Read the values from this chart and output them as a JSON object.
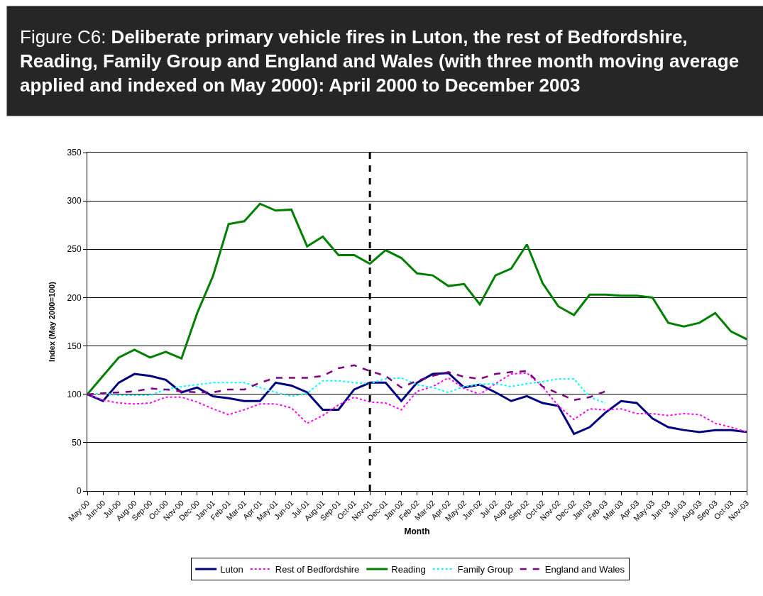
{
  "chart_data": {
    "type": "line",
    "title": "Figure C6: Deliberate primary vehicle fires in Luton, the rest of Bedfordshire, Reading, Family Group and England and Wales (with three month moving average applied and indexed on May 2000): April 2000 to December 2003",
    "xlabel": "Month",
    "ylabel": "Index (May 2000=100)",
    "categories": [
      "May-00",
      "Jun-00",
      "Jul-00",
      "Aug-00",
      "Sep-00",
      "Oct-00",
      "Nov-00",
      "Dec-00",
      "Jan-01",
      "Feb-01",
      "Mar-01",
      "Apr-01",
      "May-01",
      "Jun-01",
      "Jul-01",
      "Aug-01",
      "Sep-01",
      "Oct-01",
      "Nov-01",
      "Dec-01",
      "Jan-02",
      "Feb-02",
      "Mar-02",
      "Apr-02",
      "May-02",
      "Jun-02",
      "Jul-02",
      "Aug-02",
      "Sep-02",
      "Oct-02",
      "Nov-02",
      "Dec-02",
      "Jan-03",
      "Feb-03",
      "Mar-03",
      "Apr-03",
      "May-03",
      "Jun-03",
      "Jul-03",
      "Aug-03",
      "Sep-03",
      "Oct-03",
      "Nov-03"
    ],
    "series": [
      {
        "name": "Luton",
        "color": "#000080",
        "line_style": "solid",
        "values": [
          100,
          93,
          112,
          121,
          119,
          115,
          102,
          107,
          98,
          96,
          93,
          93,
          112,
          109,
          102,
          84,
          84,
          105,
          112,
          112,
          93,
          112,
          121,
          122,
          107,
          110,
          102,
          93,
          98,
          91,
          88,
          59,
          66,
          81,
          93,
          91,
          75,
          66,
          63,
          61,
          63,
          63,
          61
        ]
      },
      {
        "name": "Rest of Bedfordshire",
        "color": "#ff00ff",
        "line_style": "dotted",
        "values": [
          100,
          94,
          91,
          90,
          91,
          97,
          97,
          92,
          85,
          79,
          84,
          90,
          90,
          86,
          70,
          78,
          89,
          97,
          92,
          91,
          84,
          103,
          108,
          117,
          106,
          100,
          111,
          121,
          122,
          108,
          88,
          74,
          85,
          84,
          85,
          80,
          80,
          78,
          80,
          79,
          70,
          66,
          61
        ]
      },
      {
        "name": "Reading",
        "color": "#008000",
        "line_style": "solid",
        "values": [
          100,
          119,
          138,
          146,
          138,
          144,
          137,
          184,
          222,
          276,
          279,
          297,
          290,
          291,
          253,
          263,
          244,
          244,
          235,
          249,
          241,
          225,
          223,
          212,
          214,
          193,
          223,
          230,
          255,
          215,
          191,
          182,
          203,
          203,
          202,
          202,
          200,
          174,
          170,
          174,
          184,
          165,
          157
        ]
      },
      {
        "name": "Family Group",
        "color": "#00ffff",
        "line_style": "dotted",
        "values": [
          100,
          101,
          99,
          99,
          99,
          105,
          108,
          110,
          112,
          112,
          112,
          107,
          102,
          98,
          101,
          114,
          114,
          112,
          111,
          116,
          117,
          110,
          107,
          102,
          108,
          110,
          111,
          108,
          111,
          113,
          116,
          116,
          97,
          91,
          null,
          null,
          null,
          null,
          null,
          null,
          null,
          null,
          null
        ]
      },
      {
        "name": "England and Wales",
        "color": "#800080",
        "line_style": "dashed",
        "values": [
          100,
          101,
          102,
          103,
          106,
          105,
          103,
          102,
          102,
          105,
          105,
          112,
          117,
          117,
          117,
          119,
          127,
          130,
          124,
          119,
          107,
          114,
          119,
          123,
          118,
          116,
          121,
          123,
          124,
          108,
          101,
          94,
          97,
          103,
          null,
          null,
          null,
          null,
          null,
          null,
          null,
          null,
          null
        ]
      }
    ],
    "ylim": [
      0,
      350
    ],
    "yticks": [
      0,
      50,
      100,
      150,
      200,
      250,
      300,
      350
    ],
    "ref_lines": [
      {
        "axis": "x",
        "value": "Nov-01",
        "color": "#000000",
        "line_style": "dashed"
      }
    ],
    "grid": "y",
    "legend": "bottom",
    "marker": "none"
  }
}
